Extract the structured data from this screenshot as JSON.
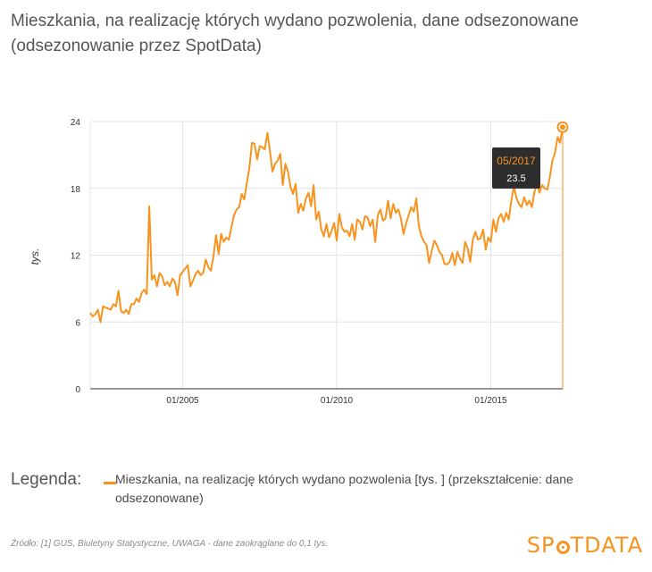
{
  "header": {
    "title_line1": "Mieszkania, na realizację których wydano pozwolenia, dane odsezonowane",
    "title_line2": "(odsezonowanie przez SpotData)"
  },
  "legend": {
    "label": "Legenda:",
    "series_text": "Mieszkania, na realizację których wydano pozwolenia [tys. ] (przekształcenie: dane odsezonowane)"
  },
  "footer": {
    "source": "Źródło: [1] GUS, Biuletyny Statystyczne, UWAGA - dane zaokrąglane do 0,1 tys.",
    "brand_left": "SP",
    "brand_right": "TDATA"
  },
  "tooltip": {
    "date": "05/2017",
    "value": "23.5"
  },
  "colors": {
    "series": "#F7931E",
    "tooltip_bg": "#2d2d2d",
    "grid": "#e3e3e3",
    "axis": "#333333"
  },
  "chart_data": {
    "type": "line",
    "ylabel": "tys.",
    "ylim": [
      0,
      24
    ],
    "yticks": [
      "0",
      "6",
      "12",
      "18",
      "24"
    ],
    "xtick_labels": [
      "01/2005",
      "01/2010",
      "01/2015"
    ],
    "xlim": [
      "2002-01",
      "2017-05"
    ],
    "grid": true,
    "legend_position": "bottom",
    "series": [
      {
        "name": "Mieszkania, na realizację których wydano pozwolenia [tys. ] (przekształcenie: dane odsezonowane)",
        "points": [
          [
            "2002-01",
            6.8
          ],
          [
            "2002-02",
            6.5
          ],
          [
            "2002-03",
            6.7
          ],
          [
            "2002-04",
            7.1
          ],
          [
            "2002-05",
            6.0
          ],
          [
            "2002-06",
            7.4
          ],
          [
            "2002-07",
            7.3
          ],
          [
            "2002-08",
            7.2
          ],
          [
            "2002-09",
            7.1
          ],
          [
            "2002-10",
            7.6
          ],
          [
            "2002-11",
            7.4
          ],
          [
            "2002-12",
            8.8
          ],
          [
            "2003-01",
            7.0
          ],
          [
            "2003-02",
            6.8
          ],
          [
            "2003-03",
            7.1
          ],
          [
            "2003-04",
            6.7
          ],
          [
            "2003-05",
            7.6
          ],
          [
            "2003-06",
            7.6
          ],
          [
            "2003-07",
            8.1
          ],
          [
            "2003-08",
            7.8
          ],
          [
            "2003-09",
            8.6
          ],
          [
            "2003-10",
            8.9
          ],
          [
            "2003-11",
            8.5
          ],
          [
            "2003-12",
            16.4
          ],
          [
            "2004-01",
            9.8
          ],
          [
            "2004-02",
            10.2
          ],
          [
            "2004-03",
            9.2
          ],
          [
            "2004-04",
            10.4
          ],
          [
            "2004-05",
            10.1
          ],
          [
            "2004-06",
            9.3
          ],
          [
            "2004-07",
            9.6
          ],
          [
            "2004-08",
            9.2
          ],
          [
            "2004-09",
            9.9
          ],
          [
            "2004-10",
            9.6
          ],
          [
            "2004-11",
            8.4
          ],
          [
            "2004-12",
            10.2
          ],
          [
            "2005-01",
            10.5
          ],
          [
            "2005-02",
            10.8
          ],
          [
            "2005-03",
            11.1
          ],
          [
            "2005-04",
            9.2
          ],
          [
            "2005-05",
            9.7
          ],
          [
            "2005-06",
            10.3
          ],
          [
            "2005-07",
            10.6
          ],
          [
            "2005-08",
            10.2
          ],
          [
            "2005-09",
            10.4
          ],
          [
            "2005-10",
            11.6
          ],
          [
            "2005-11",
            10.9
          ],
          [
            "2005-12",
            10.6
          ],
          [
            "2006-01",
            11.9
          ],
          [
            "2006-02",
            13.8
          ],
          [
            "2006-03",
            12.1
          ],
          [
            "2006-04",
            13.9
          ],
          [
            "2006-05",
            13.2
          ],
          [
            "2006-06",
            13.6
          ],
          [
            "2006-07",
            13.4
          ],
          [
            "2006-08",
            14.5
          ],
          [
            "2006-09",
            15.6
          ],
          [
            "2006-10",
            16.1
          ],
          [
            "2006-11",
            16.3
          ],
          [
            "2006-12",
            17.5
          ],
          [
            "2007-01",
            17.0
          ],
          [
            "2007-02",
            18.5
          ],
          [
            "2007-03",
            19.9
          ],
          [
            "2007-04",
            22.1
          ],
          [
            "2007-05",
            22.0
          ],
          [
            "2007-06",
            20.6
          ],
          [
            "2007-07",
            21.8
          ],
          [
            "2007-08",
            21.7
          ],
          [
            "2007-09",
            21.5
          ],
          [
            "2007-10",
            23.0
          ],
          [
            "2007-11",
            21.3
          ],
          [
            "2007-12",
            19.5
          ],
          [
            "2008-01",
            20.2
          ],
          [
            "2008-02",
            20.5
          ],
          [
            "2008-03",
            21.1
          ],
          [
            "2008-04",
            18.3
          ],
          [
            "2008-05",
            20.2
          ],
          [
            "2008-06",
            19.5
          ],
          [
            "2008-07",
            18.1
          ],
          [
            "2008-08",
            17.5
          ],
          [
            "2008-09",
            18.4
          ],
          [
            "2008-10",
            15.8
          ],
          [
            "2008-11",
            16.6
          ],
          [
            "2008-12",
            16.0
          ],
          [
            "2009-01",
            17.1
          ],
          [
            "2009-02",
            17.6
          ],
          [
            "2009-03",
            16.4
          ],
          [
            "2009-04",
            18.3
          ],
          [
            "2009-05",
            15.2
          ],
          [
            "2009-06",
            15.9
          ],
          [
            "2009-07",
            14.3
          ],
          [
            "2009-08",
            13.7
          ],
          [
            "2009-09",
            14.8
          ],
          [
            "2009-10",
            13.6
          ],
          [
            "2009-11",
            14.2
          ],
          [
            "2009-12",
            14.9
          ],
          [
            "2010-01",
            13.3
          ],
          [
            "2010-02",
            15.7
          ],
          [
            "2010-03",
            14.5
          ],
          [
            "2010-04",
            14.1
          ],
          [
            "2010-05",
            14.2
          ],
          [
            "2010-06",
            13.7
          ],
          [
            "2010-07",
            14.8
          ],
          [
            "2010-08",
            13.4
          ],
          [
            "2010-09",
            15.2
          ],
          [
            "2010-10",
            15.0
          ],
          [
            "2010-11",
            14.3
          ],
          [
            "2010-12",
            15.5
          ],
          [
            "2011-01",
            15.4
          ],
          [
            "2011-02",
            14.6
          ],
          [
            "2011-03",
            15.2
          ],
          [
            "2011-04",
            13.2
          ],
          [
            "2011-05",
            15.6
          ],
          [
            "2011-06",
            16.1
          ],
          [
            "2011-07",
            15.1
          ],
          [
            "2011-08",
            15.3
          ],
          [
            "2011-09",
            16.9
          ],
          [
            "2011-10",
            15.3
          ],
          [
            "2011-11",
            16.6
          ],
          [
            "2011-12",
            15.8
          ],
          [
            "2012-01",
            16.1
          ],
          [
            "2012-02",
            15.3
          ],
          [
            "2012-03",
            13.9
          ],
          [
            "2012-04",
            14.8
          ],
          [
            "2012-05",
            15.6
          ],
          [
            "2012-06",
            16.3
          ],
          [
            "2012-07",
            15.9
          ],
          [
            "2012-08",
            17.1
          ],
          [
            "2012-09",
            14.6
          ],
          [
            "2012-10",
            13.7
          ],
          [
            "2012-11",
            13.2
          ],
          [
            "2012-12",
            12.9
          ],
          [
            "2013-01",
            11.3
          ],
          [
            "2013-02",
            12.4
          ],
          [
            "2013-03",
            13.3
          ],
          [
            "2013-04",
            12.9
          ],
          [
            "2013-05",
            12.3
          ],
          [
            "2013-06",
            12.0
          ],
          [
            "2013-07",
            11.2
          ],
          [
            "2013-08",
            11.2
          ],
          [
            "2013-09",
            11.4
          ],
          [
            "2013-10",
            12.2
          ],
          [
            "2013-11",
            11.1
          ],
          [
            "2013-12",
            12.3
          ],
          [
            "2014-01",
            11.7
          ],
          [
            "2014-02",
            11.3
          ],
          [
            "2014-03",
            13.2
          ],
          [
            "2014-04",
            12.6
          ],
          [
            "2014-05",
            11.4
          ],
          [
            "2014-06",
            13.4
          ],
          [
            "2014-07",
            14.1
          ],
          [
            "2014-08",
            13.4
          ],
          [
            "2014-09",
            13.5
          ],
          [
            "2014-10",
            14.3
          ],
          [
            "2014-11",
            12.5
          ],
          [
            "2014-12",
            13.6
          ],
          [
            "2015-01",
            13.2
          ],
          [
            "2015-02",
            15.2
          ],
          [
            "2015-03",
            14.1
          ],
          [
            "2015-04",
            15.3
          ],
          [
            "2015-05",
            15.7
          ],
          [
            "2015-06",
            15.0
          ],
          [
            "2015-07",
            15.8
          ],
          [
            "2015-08",
            15.2
          ],
          [
            "2015-09",
            16.9
          ],
          [
            "2015-10",
            18.2
          ],
          [
            "2015-11",
            17.1
          ],
          [
            "2015-12",
            16.6
          ],
          [
            "2016-01",
            16.3
          ],
          [
            "2016-02",
            17.2
          ],
          [
            "2016-03",
            16.5
          ],
          [
            "2016-04",
            16.9
          ],
          [
            "2016-05",
            16.3
          ],
          [
            "2016-06",
            17.7
          ],
          [
            "2016-07",
            18.4
          ],
          [
            "2016-08",
            17.6
          ],
          [
            "2016-09",
            18.3
          ],
          [
            "2016-10",
            18.0
          ],
          [
            "2016-11",
            17.9
          ],
          [
            "2016-12",
            19.0
          ],
          [
            "2017-01",
            20.5
          ],
          [
            "2017-02",
            21.2
          ],
          [
            "2017-03",
            22.6
          ],
          [
            "2017-04",
            22.1
          ],
          [
            "2017-05",
            23.5
          ]
        ]
      }
    ],
    "highlight": {
      "x": "2017-05",
      "y": 23.5
    }
  }
}
